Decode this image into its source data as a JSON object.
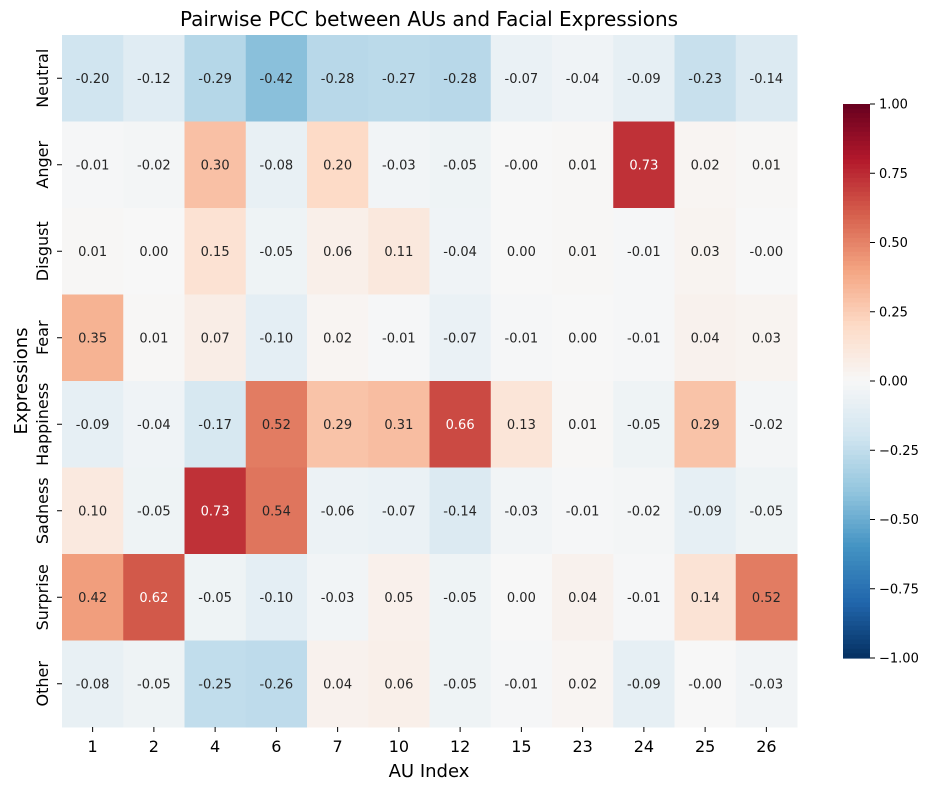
{
  "chart_data": {
    "type": "heatmap",
    "title": "Pairwise PCC between AUs and Facial Expressions",
    "xlabel": "AU Index",
    "ylabel": "Expressions",
    "x_categories": [
      "1",
      "2",
      "4",
      "6",
      "7",
      "10",
      "12",
      "15",
      "23",
      "24",
      "25",
      "26"
    ],
    "y_categories": [
      "Neutral",
      "Anger",
      "Disgust",
      "Fear",
      "Happiness",
      "Sadness",
      "Surprise",
      "Other"
    ],
    "values": [
      [
        -0.2,
        -0.12,
        -0.29,
        -0.42,
        -0.28,
        -0.27,
        -0.28,
        -0.07,
        -0.04,
        -0.09,
        -0.23,
        -0.14
      ],
      [
        -0.01,
        -0.02,
        0.3,
        -0.08,
        0.2,
        -0.03,
        -0.05,
        0.0,
        0.01,
        0.73,
        0.02,
        0.01
      ],
      [
        0.01,
        0.0,
        0.15,
        -0.05,
        0.06,
        0.11,
        -0.04,
        0.0,
        0.01,
        -0.01,
        0.03,
        0.0
      ],
      [
        0.35,
        0.01,
        0.07,
        -0.1,
        0.02,
        -0.01,
        -0.07,
        -0.01,
        0.0,
        -0.01,
        0.04,
        0.03
      ],
      [
        -0.09,
        -0.04,
        -0.17,
        0.52,
        0.29,
        0.31,
        0.66,
        0.13,
        0.01,
        -0.05,
        0.29,
        -0.02
      ],
      [
        0.1,
        -0.05,
        0.73,
        0.54,
        -0.06,
        -0.07,
        -0.14,
        -0.03,
        -0.01,
        -0.02,
        -0.09,
        -0.05
      ],
      [
        0.42,
        0.62,
        -0.05,
        -0.1,
        -0.03,
        0.05,
        -0.05,
        0.0,
        0.04,
        -0.01,
        0.14,
        0.52
      ],
      [
        -0.08,
        -0.05,
        -0.25,
        -0.26,
        0.04,
        0.06,
        -0.05,
        -0.01,
        0.02,
        -0.09,
        0.0,
        -0.03
      ]
    ],
    "cell_labels": [
      [
        "-0.20",
        "-0.12",
        "-0.29",
        "-0.42",
        "-0.28",
        "-0.27",
        "-0.28",
        "-0.07",
        "-0.04",
        "-0.09",
        "-0.23",
        "-0.14"
      ],
      [
        "-0.01",
        "-0.02",
        "0.30",
        "-0.08",
        "0.20",
        "-0.03",
        "-0.05",
        "-0.00",
        "0.01",
        "0.73",
        "0.02",
        "0.01"
      ],
      [
        "0.01",
        "0.00",
        "0.15",
        "-0.05",
        "0.06",
        "0.11",
        "-0.04",
        "0.00",
        "0.01",
        "-0.01",
        "0.03",
        "-0.00"
      ],
      [
        "0.35",
        "0.01",
        "0.07",
        "-0.10",
        "0.02",
        "-0.01",
        "-0.07",
        "-0.01",
        "0.00",
        "-0.01",
        "0.04",
        "0.03"
      ],
      [
        "-0.09",
        "-0.04",
        "-0.17",
        "0.52",
        "0.29",
        "0.31",
        "0.66",
        "0.13",
        "0.01",
        "-0.05",
        "0.29",
        "-0.02"
      ],
      [
        "0.10",
        "-0.05",
        "0.73",
        "0.54",
        "-0.06",
        "-0.07",
        "-0.14",
        "-0.03",
        "-0.01",
        "-0.02",
        "-0.09",
        "-0.05"
      ],
      [
        "0.42",
        "0.62",
        "-0.05",
        "-0.10",
        "-0.03",
        "0.05",
        "-0.05",
        "0.00",
        "0.04",
        "-0.01",
        "0.14",
        "0.52"
      ],
      [
        "-0.08",
        "-0.05",
        "-0.25",
        "-0.26",
        "0.04",
        "0.06",
        "-0.05",
        "-0.01",
        "0.02",
        "-0.09",
        "-0.00",
        "-0.03"
      ]
    ],
    "colorbar": {
      "vmin": -1.0,
      "vmax": 1.0,
      "ticks": [
        1.0,
        0.75,
        0.5,
        0.25,
        0.0,
        -0.25,
        -0.5,
        -0.75,
        -1.0
      ],
      "tick_labels": [
        "1.00",
        "0.75",
        "0.50",
        "0.25",
        "0.00",
        "−0.25",
        "−0.50",
        "−0.75",
        "−1.00"
      ],
      "colormap": "RdBu_r"
    },
    "colors": {
      "stops": [
        "#053061",
        "#2166ac",
        "#4393c3",
        "#92c5de",
        "#d1e5f0",
        "#f7f7f7",
        "#fddbc7",
        "#f4a582",
        "#d6604d",
        "#b2182b",
        "#67001f"
      ],
      "text_dark": "#262626",
      "text_light": "#ffffff"
    }
  }
}
